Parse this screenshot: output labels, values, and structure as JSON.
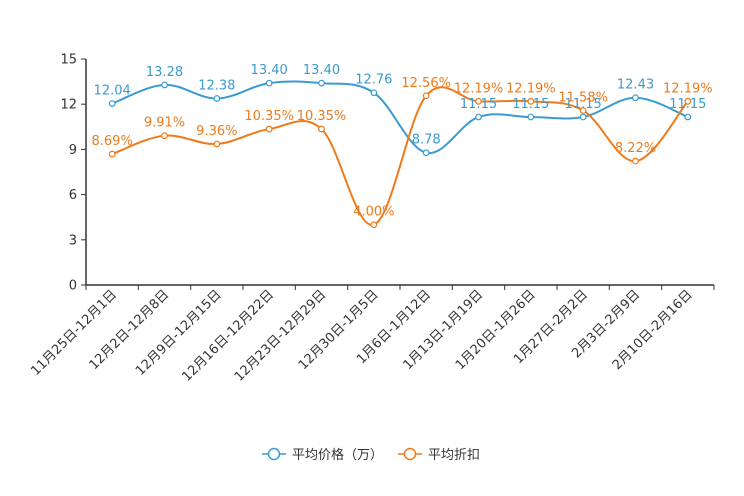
{
  "chart_data": {
    "type": "line",
    "title": "",
    "xlabel": "",
    "ylabel": "",
    "ylim": [
      0,
      15
    ],
    "yticks": [
      0,
      3,
      6,
      9,
      12,
      15
    ],
    "grid": false,
    "legend_position": "bottom-center",
    "categories": [
      "11月25日-12月1日",
      "12月2日-12月8日",
      "12月9日-12月15日",
      "12月16日-12月22日",
      "12月23日-12月29日",
      "12月30日-1月5日",
      "1月6日-1月12日",
      "1月13日-1月19日",
      "1月20日-1月26日",
      "1月27日-2月2日",
      "2月3日-2月9日",
      "2月10日-2月16日"
    ],
    "series": [
      {
        "name": "平均价格（万）",
        "color": "#3a9bd0",
        "values": [
          12.04,
          13.28,
          12.38,
          13.4,
          13.4,
          12.76,
          8.78,
          11.15,
          11.15,
          11.15,
          12.43,
          11.15
        ],
        "labels": [
          "12.04",
          "13.28",
          "12.38",
          "13.40",
          "13.40",
          "12.76",
          "8.78",
          "11.15",
          "11.15",
          "11.15",
          "12.43",
          "11.15"
        ]
      },
      {
        "name": "平均折扣",
        "color": "#f07a1a",
        "values": [
          8.69,
          9.91,
          9.36,
          10.35,
          10.35,
          4.0,
          12.56,
          12.19,
          12.19,
          11.58,
          8.22,
          12.19
        ],
        "labels": [
          "8.69%",
          "9.91%",
          "9.36%",
          "10.35%",
          "10.35%",
          "4.00%",
          "12.56%",
          "12.19%",
          "12.19%",
          "11.58%",
          "8.22%",
          "12.19%"
        ]
      }
    ]
  }
}
